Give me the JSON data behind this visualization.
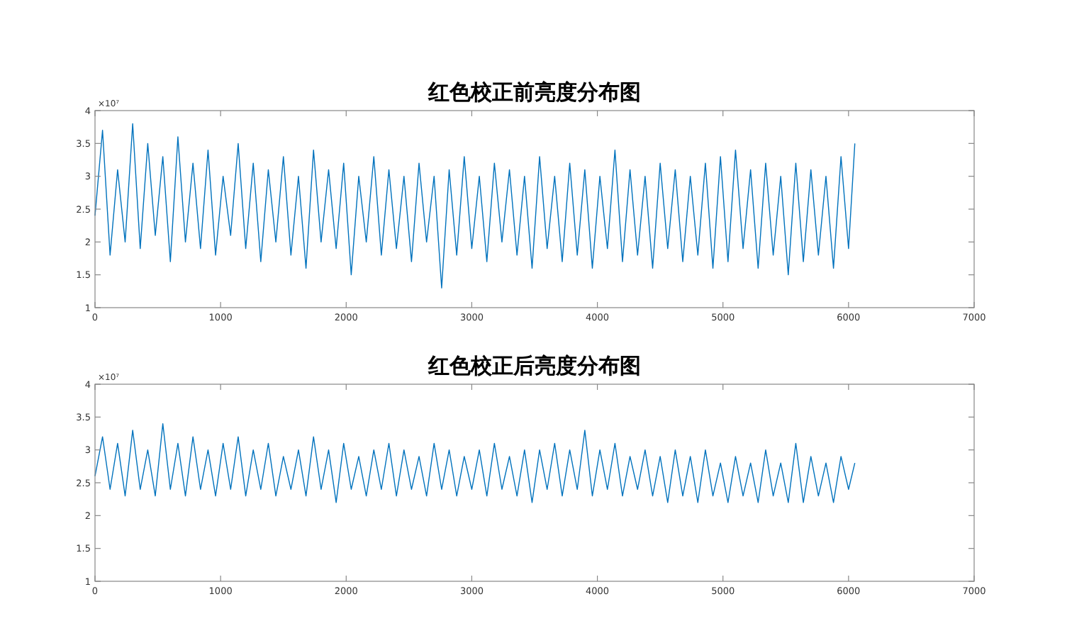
{
  "chart_data": [
    {
      "type": "line",
      "title": "红色校正前亮度分布图",
      "annotations": [
        "×10⁷"
      ],
      "xlim": [
        0,
        7000
      ],
      "xticks": [
        0,
        1000,
        2000,
        3000,
        4000,
        5000,
        6000,
        7000
      ],
      "ylim": [
        1,
        4
      ],
      "yticks": [
        1,
        1.5,
        2,
        2.5,
        3,
        3.5,
        4
      ],
      "grid": false,
      "x": [
        0,
        60,
        120,
        180,
        240,
        300,
        360,
        420,
        480,
        540,
        600,
        660,
        720,
        780,
        840,
        900,
        960,
        1020,
        1080,
        1140,
        1200,
        1260,
        1320,
        1380,
        1440,
        1500,
        1560,
        1620,
        1680,
        1740,
        1800,
        1860,
        1920,
        1980,
        2040,
        2100,
        2160,
        2220,
        2280,
        2340,
        2400,
        2460,
        2520,
        2580,
        2640,
        2700,
        2760,
        2820,
        2880,
        2940,
        3000,
        3060,
        3120,
        3180,
        3240,
        3300,
        3360,
        3420,
        3480,
        3540,
        3600,
        3660,
        3720,
        3780,
        3840,
        3900,
        3960,
        4020,
        4080,
        4140,
        4200,
        4260,
        4320,
        4380,
        4440,
        4500,
        4560,
        4620,
        4680,
        4740,
        4800,
        4860,
        4920,
        4980,
        5040,
        5100,
        5160,
        5220,
        5280,
        5340,
        5400,
        5460,
        5520,
        5580,
        5640,
        5700,
        5760,
        5820,
        5880,
        5940,
        6000,
        6050
      ],
      "series": [
        {
          "color": "#0072bd",
          "values": [
            2.4,
            3.7,
            1.8,
            3.1,
            2.0,
            3.8,
            1.9,
            3.5,
            2.1,
            3.3,
            1.7,
            3.6,
            2.0,
            3.2,
            1.9,
            3.4,
            1.8,
            3.0,
            2.1,
            3.5,
            1.9,
            3.2,
            1.7,
            3.1,
            2.0,
            3.3,
            1.8,
            3.0,
            1.6,
            3.4,
            2.0,
            3.1,
            1.9,
            3.2,
            1.5,
            3.0,
            2.0,
            3.3,
            1.8,
            3.1,
            1.9,
            3.0,
            1.7,
            3.2,
            2.0,
            3.0,
            1.3,
            3.1,
            1.8,
            3.3,
            1.9,
            3.0,
            1.7,
            3.2,
            2.0,
            3.1,
            1.8,
            3.0,
            1.6,
            3.3,
            1.9,
            3.0,
            1.7,
            3.2,
            1.8,
            3.1,
            1.6,
            3.0,
            1.9,
            3.4,
            1.7,
            3.1,
            1.8,
            3.0,
            1.6,
            3.2,
            1.9,
            3.1,
            1.7,
            3.0,
            1.8,
            3.2,
            1.6,
            3.3,
            1.7,
            3.4,
            1.9,
            3.1,
            1.6,
            3.2,
            1.8,
            3.0,
            1.5,
            3.2,
            1.7,
            3.1,
            1.8,
            3.0,
            1.6,
            3.3,
            1.9,
            3.5
          ]
        }
      ]
    },
    {
      "type": "line",
      "title": "红色校正后亮度分布图",
      "annotations": [
        "×10⁷"
      ],
      "xlim": [
        0,
        7000
      ],
      "xticks": [
        0,
        1000,
        2000,
        3000,
        4000,
        5000,
        6000,
        7000
      ],
      "ylim": [
        1,
        4
      ],
      "yticks": [
        1,
        1.5,
        2,
        2.5,
        3,
        3.5,
        4
      ],
      "grid": false,
      "x": [
        0,
        60,
        120,
        180,
        240,
        300,
        360,
        420,
        480,
        540,
        600,
        660,
        720,
        780,
        840,
        900,
        960,
        1020,
        1080,
        1140,
        1200,
        1260,
        1320,
        1380,
        1440,
        1500,
        1560,
        1620,
        1680,
        1740,
        1800,
        1860,
        1920,
        1980,
        2040,
        2100,
        2160,
        2220,
        2280,
        2340,
        2400,
        2460,
        2520,
        2580,
        2640,
        2700,
        2760,
        2820,
        2880,
        2940,
        3000,
        3060,
        3120,
        3180,
        3240,
        3300,
        3360,
        3420,
        3480,
        3540,
        3600,
        3660,
        3720,
        3780,
        3840,
        3900,
        3960,
        4020,
        4080,
        4140,
        4200,
        4260,
        4320,
        4380,
        4440,
        4500,
        4560,
        4620,
        4680,
        4740,
        4800,
        4860,
        4920,
        4980,
        5040,
        5100,
        5160,
        5220,
        5280,
        5340,
        5400,
        5460,
        5520,
        5580,
        5640,
        5700,
        5760,
        5820,
        5880,
        5940,
        6000,
        6050
      ],
      "series": [
        {
          "color": "#0072bd",
          "values": [
            2.6,
            3.2,
            2.4,
            3.1,
            2.3,
            3.3,
            2.4,
            3.0,
            2.3,
            3.4,
            2.4,
            3.1,
            2.3,
            3.2,
            2.4,
            3.0,
            2.3,
            3.1,
            2.4,
            3.2,
            2.3,
            3.0,
            2.4,
            3.1,
            2.3,
            2.9,
            2.4,
            3.0,
            2.3,
            3.2,
            2.4,
            3.0,
            2.2,
            3.1,
            2.4,
            2.9,
            2.3,
            3.0,
            2.4,
            3.1,
            2.3,
            3.0,
            2.4,
            2.9,
            2.3,
            3.1,
            2.4,
            3.0,
            2.3,
            2.9,
            2.4,
            3.0,
            2.3,
            3.1,
            2.4,
            2.9,
            2.3,
            3.0,
            2.2,
            3.0,
            2.4,
            3.1,
            2.3,
            3.0,
            2.4,
            3.3,
            2.3,
            3.0,
            2.4,
            3.1,
            2.3,
            2.9,
            2.4,
            3.0,
            2.3,
            2.9,
            2.2,
            3.0,
            2.3,
            2.9,
            2.2,
            3.0,
            2.3,
            2.8,
            2.2,
            2.9,
            2.3,
            2.8,
            2.2,
            3.0,
            2.3,
            2.8,
            2.2,
            3.1,
            2.2,
            2.9,
            2.3,
            2.8,
            2.2,
            2.9,
            2.4,
            2.8
          ]
        }
      ]
    }
  ]
}
